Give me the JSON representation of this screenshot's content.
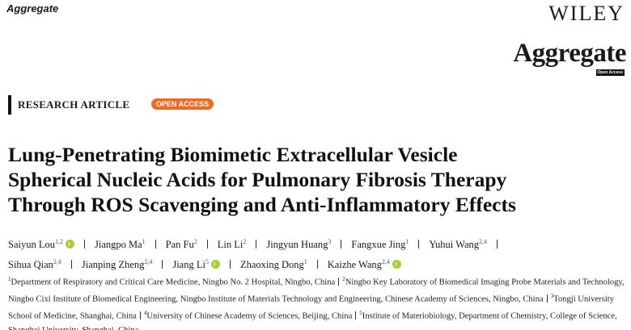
{
  "header": {
    "running_journal": "Aggregate",
    "publisher": "WILEY",
    "logo_title": "Aggregate",
    "logo_badge": "Open Access"
  },
  "article": {
    "type": "RESEARCH ARTICLE",
    "access_badge": "OPEN ACCESS",
    "title_lines": [
      "Lung-Penetrating Biomimetic Extracellular Vesicle",
      "Spherical Nucleic Acids for Pulmonary Fibrosis Therapy",
      "Through ROS Scavenging and Anti-Inflammatory Effects"
    ],
    "author_rows": [
      [
        {
          "name": "Saiyun Lou",
          "affil": "1,2",
          "orcid": true
        },
        {
          "name": "Jiangpo Ma",
          "affil": "1",
          "orcid": false
        },
        {
          "name": "Pan Fu",
          "affil": "2",
          "orcid": false
        },
        {
          "name": "Lin Li",
          "affil": "2",
          "orcid": false
        },
        {
          "name": "Jingyun Huang",
          "affil": "3",
          "orcid": false
        },
        {
          "name": "Fangxue Jing",
          "affil": "1",
          "orcid": false
        },
        {
          "name": "Yuhui Wang",
          "affil": "2,4",
          "orcid": false
        }
      ],
      [
        {
          "name": "Sihua Qian",
          "affil": "2,4",
          "orcid": false
        },
        {
          "name": "Jianping Zheng",
          "affil": "2,4",
          "orcid": false
        },
        {
          "name": "Jiang Li",
          "affil": "5",
          "orcid": true
        },
        {
          "name": "Zhaoxing Dong",
          "affil": "1",
          "orcid": false
        },
        {
          "name": "Kaizhe Wang",
          "affil": "2,4",
          "orcid": true
        }
      ]
    ],
    "affiliations": [
      {
        "number": "1",
        "text": "Department of Respiratory and Critical Care Medicine, Ningbo No. 2 Hospital, Ningbo, China"
      },
      {
        "number": "2",
        "text": "Ningbo Key Laboratory of Biomedical Imaging Probe Materials and Technology, Ningbo Cixi Institute of Biomedical Engineering, Ningbo Institute of Materials Technology and Engineering, Chinese Academy of Sciences, Ningbo, China"
      },
      {
        "number": "3",
        "text": "Tongji University School of Medicine, Shanghai, China"
      },
      {
        "number": "4",
        "text": "University of Chinese Academy of Sciences, Beijing, China"
      },
      {
        "number": "5",
        "text": "Institute of Materiobiology, Department of Chemistry, College of Science, Shanghai University, Shanghai, China"
      }
    ]
  }
}
